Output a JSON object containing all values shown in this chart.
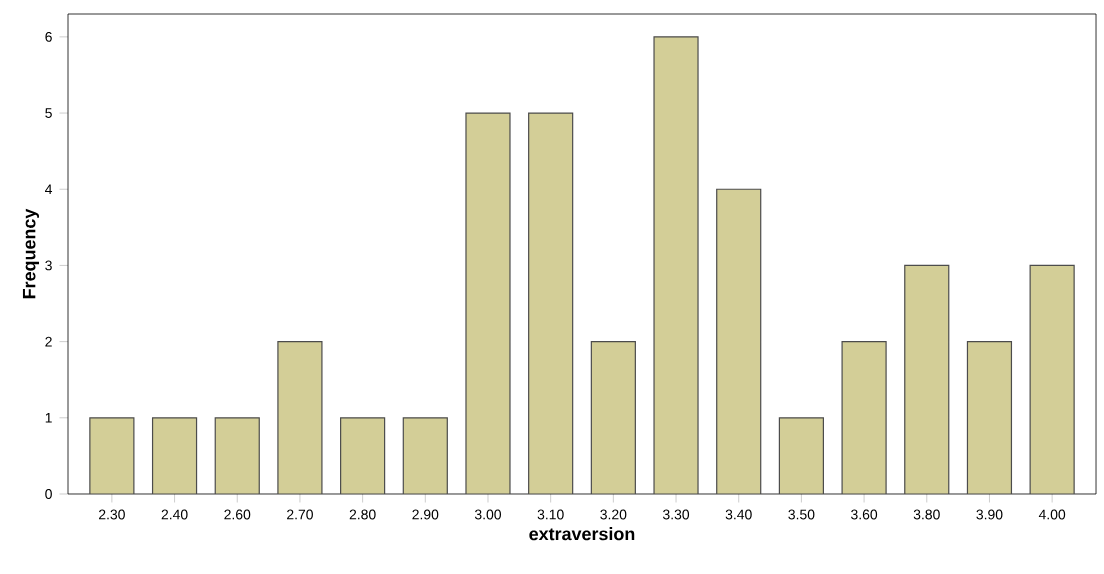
{
  "chart_data": {
    "type": "bar",
    "xlabel": "extraversion",
    "ylabel": "Frequency",
    "categories": [
      "2.30",
      "2.40",
      "2.60",
      "2.70",
      "2.80",
      "2.90",
      "3.00",
      "3.10",
      "3.20",
      "3.30",
      "3.40",
      "3.50",
      "3.60",
      "3.80",
      "3.90",
      "4.00"
    ],
    "values": [
      1,
      1,
      1,
      2,
      1,
      1,
      5,
      5,
      2,
      6,
      4,
      1,
      2,
      3,
      2,
      3
    ],
    "color": "#d3ce97",
    "ylim": [
      0,
      6.3
    ],
    "yticks": [
      0,
      1,
      2,
      3,
      4,
      5,
      6
    ],
    "grid": false
  }
}
